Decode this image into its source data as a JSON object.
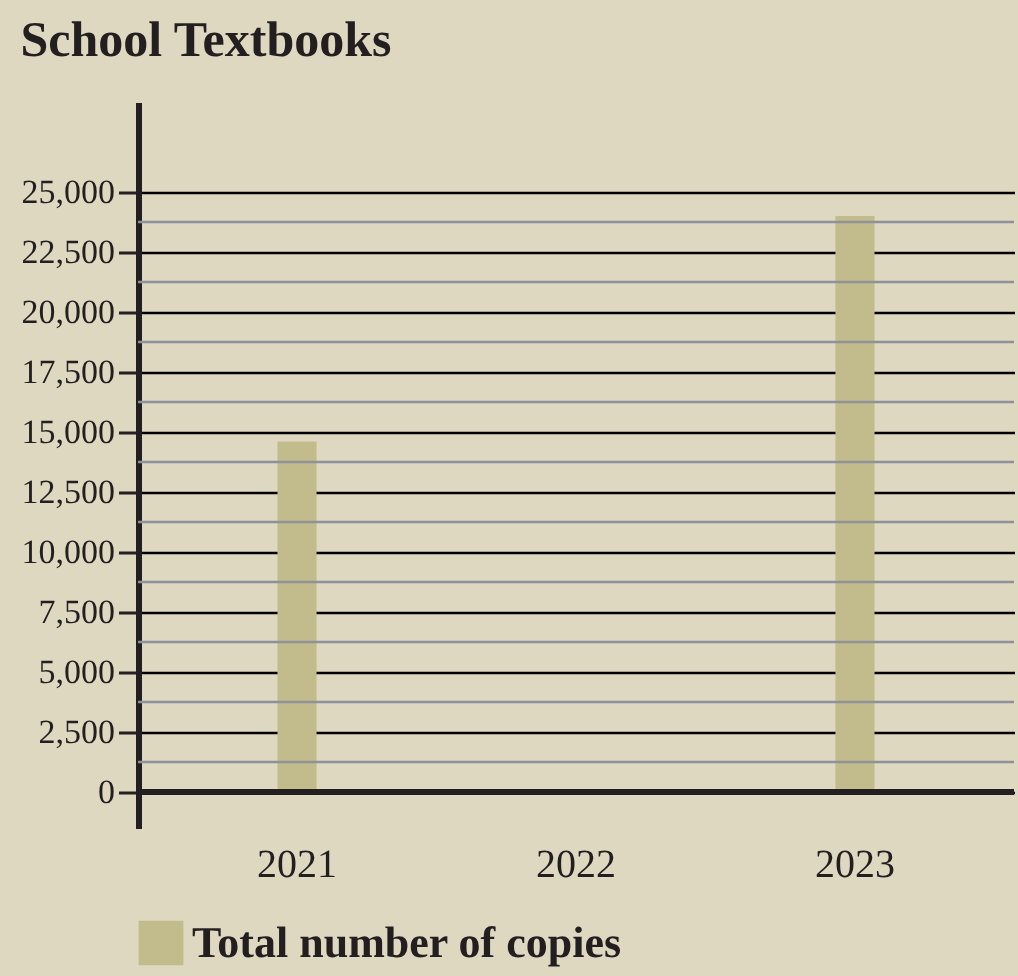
{
  "chart_data": {
    "type": "bar",
    "title": "School Textbooks",
    "categories": [
      "2021",
      "2022",
      "2023"
    ],
    "series": [
      {
        "name": "Total number of copies",
        "color": "#c2bb8b",
        "values": [
          14600,
          null,
          24000
        ]
      }
    ],
    "ylim": [
      -1500,
      28750
    ],
    "yticks": [
      0,
      {
        "value": 2500,
        "label": "2,500"
      },
      {
        "value": 5000,
        "label": "5,000"
      },
      {
        "value": 7500,
        "label": "7,500"
      },
      {
        "value": 10000,
        "label": "10,000"
      },
      {
        "value": 12500,
        "label": "12,500"
      },
      {
        "value": 15000,
        "label": "15,000"
      },
      {
        "value": 17500,
        "label": "17,500"
      },
      {
        "value": 20000,
        "label": "20,000"
      },
      {
        "value": 22500,
        "label": "22,500"
      },
      {
        "value": 25000,
        "label": "25,000"
      }
    ],
    "grid": "y",
    "legend": "bottom"
  }
}
